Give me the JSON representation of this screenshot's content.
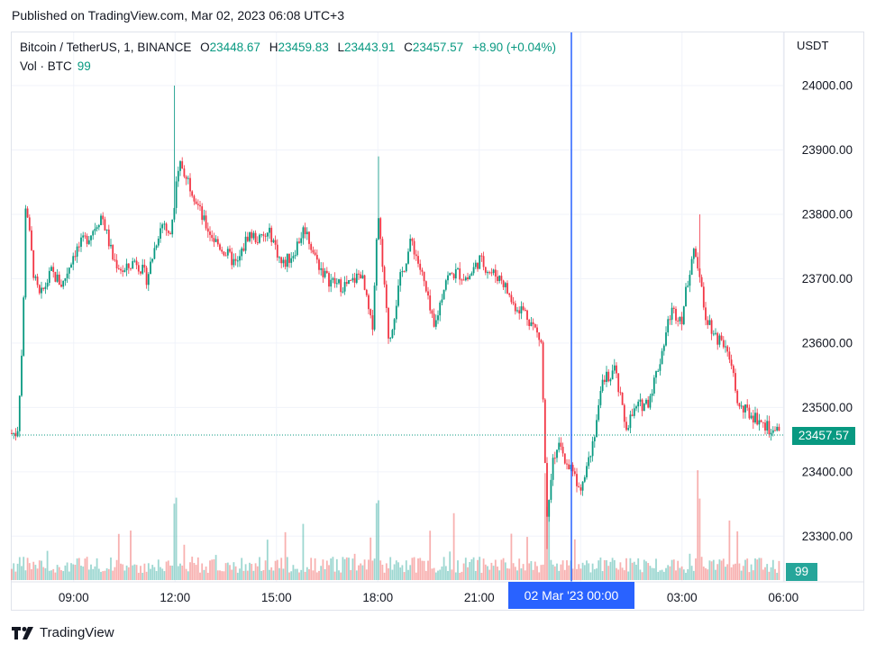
{
  "header": {
    "published": "Published on TradingView.com, Mar 02, 2023 06:08 UTC+3"
  },
  "legend": {
    "symbol": "Bitcoin / TetherUS, 1, BINANCE",
    "o_label": "O",
    "o": "23448.67",
    "h_label": "H",
    "h": "23459.83",
    "l_label": "L",
    "l": "23443.91",
    "c_label": "C",
    "c": "23457.57",
    "change": "+8.90 (+0.04%)"
  },
  "volume_legend": {
    "label": "Vol · BTC",
    "value": "99"
  },
  "axis": {
    "currency": "USDT"
  },
  "price_badge": "23457.57",
  "volume_badge": "99",
  "cursor_time": "02 Mar '23   00:00",
  "branding": {
    "name": "TradingView"
  },
  "colors": {
    "up": "#089981",
    "down": "#f23645",
    "crosshair": "#2962ff",
    "grid": "#f0f3fa"
  },
  "chart_data": {
    "type": "candlestick",
    "interval": "1 minute",
    "y_axis": {
      "ylim": [
        23250,
        24050
      ],
      "ticks": [
        "24000.00",
        "23900.00",
        "23800.00",
        "23700.00",
        "23600.00",
        "23500.00",
        "23400.00",
        "23300.00"
      ]
    },
    "x_axis": {
      "ticks": [
        "09:00",
        "12:00",
        "15:00",
        "18:00",
        "21:00",
        "00:00",
        "03:00",
        "06:00"
      ]
    },
    "price_path": [
      [
        "07:20",
        23460
      ],
      [
        "07:30",
        23620
      ],
      [
        "07:35",
        23830
      ],
      [
        "07:40",
        23780
      ],
      [
        "07:50",
        23700
      ],
      [
        "08:00",
        23670
      ],
      [
        "08:20",
        23710
      ],
      [
        "08:40",
        23690
      ],
      [
        "09:00",
        23740
      ],
      [
        "09:30",
        23770
      ],
      [
        "09:50",
        23800
      ],
      [
        "10:10",
        23730
      ],
      [
        "10:30",
        23710
      ],
      [
        "10:50",
        23730
      ],
      [
        "11:10",
        23700
      ],
      [
        "11:30",
        23770
      ],
      [
        "11:40",
        23790
      ],
      [
        "11:50",
        23760
      ],
      [
        "12:00",
        23830
      ],
      [
        "12:10",
        23880
      ],
      [
        "12:30",
        23840
      ],
      [
        "12:50",
        23790
      ],
      [
        "13:10",
        23760
      ],
      [
        "13:30",
        23740
      ],
      [
        "13:50",
        23720
      ],
      [
        "14:10",
        23770
      ],
      [
        "14:30",
        23760
      ],
      [
        "14:50",
        23770
      ],
      [
        "15:10",
        23720
      ],
      [
        "15:30",
        23740
      ],
      [
        "15:50",
        23780
      ],
      [
        "16:10",
        23730
      ],
      [
        "16:30",
        23700
      ],
      [
        "16:50",
        23690
      ],
      [
        "17:10",
        23690
      ],
      [
        "17:30",
        23710
      ],
      [
        "17:50",
        23620
      ],
      [
        "18:00",
        23800
      ],
      [
        "18:10",
        23700
      ],
      [
        "18:20",
        23600
      ],
      [
        "18:40",
        23700
      ],
      [
        "19:00",
        23760
      ],
      [
        "19:20",
        23700
      ],
      [
        "19:40",
        23620
      ],
      [
        "20:00",
        23700
      ],
      [
        "20:20",
        23710
      ],
      [
        "20:40",
        23700
      ],
      [
        "21:00",
        23730
      ],
      [
        "21:20",
        23710
      ],
      [
        "21:40",
        23700
      ],
      [
        "22:00",
        23660
      ],
      [
        "22:20",
        23650
      ],
      [
        "22:40",
        23620
      ],
      [
        "22:50",
        23600
      ],
      [
        "23:00",
        23330
      ],
      [
        "23:10",
        23420
      ],
      [
        "23:20",
        23440
      ],
      [
        "23:30",
        23420
      ],
      [
        "23:40",
        23410
      ],
      [
        "23:50",
        23390
      ],
      [
        "00:00",
        23380
      ],
      [
        "00:20",
        23440
      ],
      [
        "00:40",
        23540
      ],
      [
        "01:00",
        23560
      ],
      [
        "01:20",
        23470
      ],
      [
        "01:40",
        23500
      ],
      [
        "02:00",
        23510
      ],
      [
        "02:20",
        23570
      ],
      [
        "02:40",
        23650
      ],
      [
        "03:00",
        23640
      ],
      [
        "03:20",
        23750
      ],
      [
        "03:30",
        23720
      ],
      [
        "03:40",
        23650
      ],
      [
        "04:00",
        23610
      ],
      [
        "04:20",
        23600
      ],
      [
        "04:40",
        23500
      ],
      [
        "05:00",
        23490
      ],
      [
        "05:20",
        23480
      ],
      [
        "05:40",
        23460
      ],
      [
        "06:00",
        23457.57
      ]
    ],
    "series": [
      {
        "name": "Vol · BTC",
        "last": 99
      }
    ],
    "last": {
      "open": 23448.67,
      "high": 23459.83,
      "low": 23443.91,
      "close": 23457.57,
      "change": 8.9,
      "change_pct": 0.04
    }
  }
}
